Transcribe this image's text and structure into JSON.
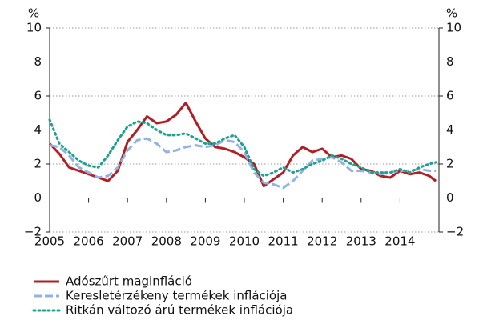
{
  "chart_data": {
    "type": "line",
    "y_unit": "%",
    "y2_unit": "%",
    "x": [
      2005,
      2005.25,
      2005.5,
      2005.75,
      2006,
      2006.25,
      2006.5,
      2006.75,
      2007,
      2007.25,
      2007.5,
      2007.75,
      2008,
      2008.25,
      2008.5,
      2008.75,
      2009,
      2009.25,
      2009.5,
      2009.75,
      2010,
      2010.25,
      2010.5,
      2010.75,
      2011,
      2011.25,
      2011.5,
      2011.75,
      2012,
      2012.25,
      2012.5,
      2012.75,
      2013,
      2013.25,
      2013.5,
      2013.75,
      2014,
      2014.25,
      2014.5,
      2014.75,
      2014.92
    ],
    "series": [
      {
        "name": "Adószűrt maginfláció",
        "color": "#b01f24",
        "style": "solid",
        "values": [
          3.2,
          2.6,
          1.8,
          1.6,
          1.4,
          1.2,
          1.0,
          1.6,
          3.3,
          4.0,
          4.8,
          4.4,
          4.5,
          4.9,
          5.6,
          4.5,
          3.5,
          3.0,
          2.9,
          2.7,
          2.4,
          2.0,
          0.7,
          1.1,
          1.5,
          2.5,
          3.0,
          2.7,
          2.9,
          2.4,
          2.5,
          2.3,
          1.7,
          1.6,
          1.3,
          1.2,
          1.6,
          1.4,
          1.5,
          1.3,
          1.0
        ]
      },
      {
        "name": "Keresletérzékeny termékek inflációja",
        "color": "#8fb4e3",
        "style": "dashed",
        "values": [
          3.1,
          3.0,
          2.5,
          1.8,
          1.5,
          1.2,
          1.3,
          1.8,
          2.8,
          3.4,
          3.5,
          3.2,
          2.7,
          2.8,
          3.0,
          3.1,
          3.0,
          3.1,
          3.4,
          3.3,
          2.7,
          1.5,
          0.9,
          0.8,
          0.6,
          1.0,
          1.6,
          2.2,
          2.3,
          2.4,
          2.1,
          1.6,
          1.6,
          1.5,
          1.4,
          1.5,
          1.6,
          1.6,
          1.7,
          1.6,
          1.6
        ]
      },
      {
        "name": "Ritkán változó árú termékek inflációja",
        "color": "#1fa18f",
        "style": "dotted",
        "values": [
          4.6,
          3.2,
          2.7,
          2.2,
          1.9,
          1.8,
          2.5,
          3.4,
          4.2,
          4.5,
          4.4,
          4.0,
          3.7,
          3.7,
          3.8,
          3.5,
          3.2,
          3.2,
          3.5,
          3.7,
          3.0,
          1.7,
          1.3,
          1.5,
          1.8,
          1.5,
          1.7,
          2.0,
          2.2,
          2.5,
          2.3,
          2.0,
          1.8,
          1.5,
          1.5,
          1.5,
          1.7,
          1.5,
          1.8,
          2.0,
          2.1
        ]
      }
    ],
    "xlim": [
      2005,
      2015
    ],
    "xticks": [
      2005,
      2006,
      2007,
      2008,
      2009,
      2010,
      2011,
      2012,
      2013,
      2014
    ],
    "ylim": [
      -2,
      10
    ],
    "yticks": [
      {
        "value": -2,
        "label": "−2"
      },
      0,
      2,
      4,
      6,
      8,
      10
    ],
    "y2lim": [
      -2,
      10
    ],
    "y2ticks": [
      {
        "value": -2,
        "label": "−2"
      },
      0,
      2,
      4,
      6,
      8,
      10
    ],
    "grid": true,
    "legend": "bottom"
  }
}
